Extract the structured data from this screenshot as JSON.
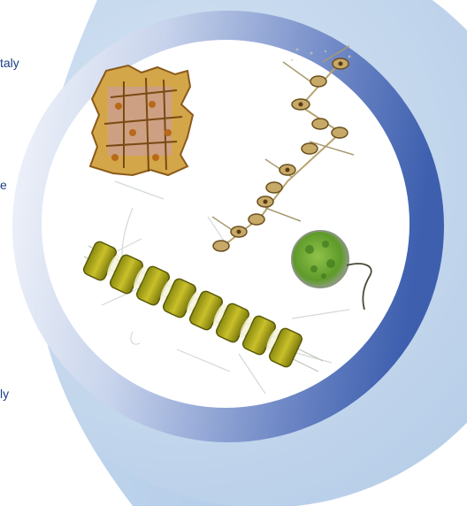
{
  "side_text": {
    "line_1": "taly",
    "line_2": "e",
    "line_3": "ly"
  },
  "colors": {
    "outer_disc": "#bcd2ea",
    "left_panel": "#b9d0ea",
    "ring_dark": "#3d5fae",
    "ring_light": "#f4f6fb",
    "inner_disc": "#ffffff",
    "text": "#1d3f86"
  },
  "illustration": {
    "subjects": [
      "dinoflagellate-cell",
      "chain-diatom",
      "colonial-diatom-chain",
      "green-spherical-cell"
    ]
  }
}
